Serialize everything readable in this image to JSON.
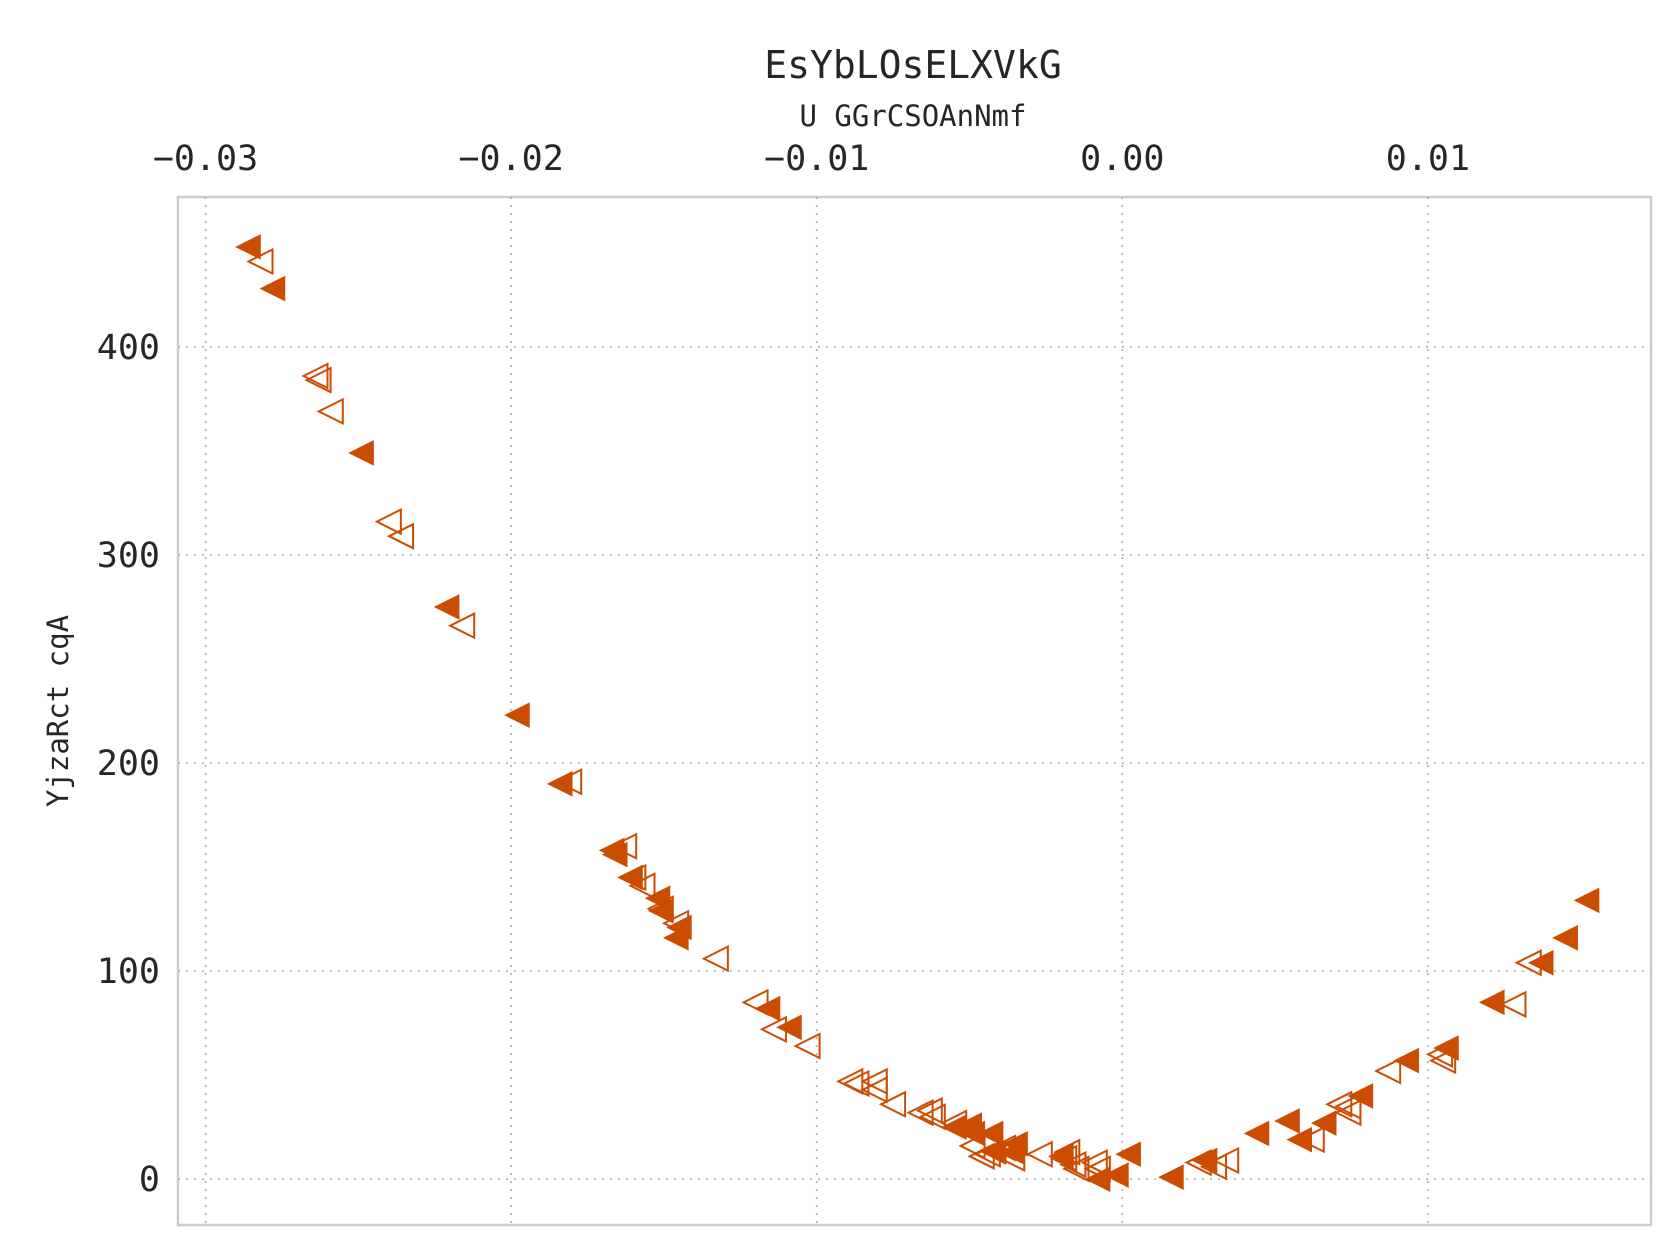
{
  "chart_data": {
    "type": "scatter",
    "title": "EsYbLOsELXVkG",
    "subtitle": "U GGrCSOAnNmf",
    "xlabel": "",
    "ylabel": "YjzaRct cqA",
    "x_axis_position": "top",
    "xlim": [
      -0.0309,
      0.0173
    ],
    "ylim": [
      -22,
      472
    ],
    "x_ticks": [
      -0.03,
      -0.02,
      -0.01,
      0.0,
      0.01
    ],
    "x_tick_labels": [
      "−0.03",
      "−0.02",
      "−0.01",
      "0.00",
      "0.01"
    ],
    "y_ticks": [
      0,
      100,
      200,
      300,
      400
    ],
    "y_tick_labels": [
      "0",
      "100",
      "200",
      "300",
      "400"
    ],
    "grid": true,
    "legend": "none",
    "color": "#cc4c02",
    "marker": "left-pointing triangle",
    "series": [
      {
        "marker_fill": "filled",
        "points": [
          [
            -0.0286,
            448
          ],
          [
            -0.0278,
            428
          ],
          [
            -0.0249,
            349
          ],
          [
            -0.0221,
            275
          ],
          [
            -0.0198,
            223
          ],
          [
            -0.0184,
            190
          ],
          [
            -0.0167,
            158
          ],
          [
            -0.0166,
            156
          ],
          [
            -0.0161,
            145
          ],
          [
            -0.0152,
            135
          ],
          [
            -0.0151,
            129
          ],
          [
            -0.0145,
            121
          ],
          [
            -0.0146,
            116
          ],
          [
            -0.0116,
            82
          ],
          [
            -0.0109,
            73
          ],
          [
            -0.0055,
            25
          ],
          [
            -0.005,
            26
          ],
          [
            -0.0049,
            22
          ],
          [
            -0.0043,
            22
          ],
          [
            -0.0042,
            13
          ],
          [
            -0.0035,
            17
          ],
          [
            -0.0036,
            13
          ],
          [
            -0.002,
            11
          ],
          [
            -0.0008,
            0
          ],
          [
            -0.0002,
            2
          ],
          [
            0.0002,
            12
          ],
          [
            0.0016,
            1
          ],
          [
            0.0027,
            9
          ],
          [
            0.0044,
            22
          ],
          [
            0.0054,
            28
          ],
          [
            0.0058,
            19
          ],
          [
            0.0066,
            27
          ],
          [
            0.0078,
            40
          ],
          [
            0.0093,
            57
          ],
          [
            0.0106,
            63
          ],
          [
            0.0121,
            85
          ],
          [
            0.0137,
            104
          ],
          [
            0.0145,
            116
          ],
          [
            0.0152,
            134
          ]
        ]
      },
      {
        "marker_fill": "hollow",
        "points": [
          [
            -0.0282,
            441
          ],
          [
            -0.0264,
            386
          ],
          [
            -0.0263,
            384
          ],
          [
            -0.0259,
            369
          ],
          [
            -0.024,
            316
          ],
          [
            -0.0236,
            309
          ],
          [
            -0.0216,
            266
          ],
          [
            -0.0181,
            191
          ],
          [
            -0.0163,
            160
          ],
          [
            -0.016,
            145
          ],
          [
            -0.0157,
            141
          ],
          [
            -0.0151,
            130
          ],
          [
            -0.0146,
            123
          ],
          [
            -0.0133,
            106
          ],
          [
            -0.012,
            85
          ],
          [
            -0.0114,
            72
          ],
          [
            -0.0103,
            64
          ],
          [
            -0.0089,
            47
          ],
          [
            -0.0087,
            46
          ],
          [
            -0.0081,
            47
          ],
          [
            -0.0081,
            43
          ],
          [
            -0.0075,
            36
          ],
          [
            -0.0066,
            32
          ],
          [
            -0.0063,
            33
          ],
          [
            -0.0062,
            30
          ],
          [
            -0.0055,
            27
          ],
          [
            -0.0049,
            16
          ],
          [
            -0.0046,
            11
          ],
          [
            -0.0044,
            12
          ],
          [
            -0.0039,
            15
          ],
          [
            -0.0036,
            10
          ],
          [
            -0.0027,
            12
          ],
          [
            -0.0018,
            13
          ],
          [
            -0.0019,
            10
          ],
          [
            -0.0016,
            7
          ],
          [
            -0.0015,
            5
          ],
          [
            -0.0008,
            5
          ],
          [
            -0.0009,
            8
          ],
          [
            0.0025,
            8
          ],
          [
            0.003,
            6
          ],
          [
            0.0034,
            9
          ],
          [
            0.0062,
            19
          ],
          [
            0.0071,
            36
          ],
          [
            0.0074,
            35
          ],
          [
            0.0074,
            32
          ],
          [
            0.0087,
            52
          ],
          [
            0.0104,
            60
          ],
          [
            0.0105,
            57
          ],
          [
            0.0128,
            84
          ],
          [
            0.0133,
            104
          ]
        ]
      }
    ]
  }
}
